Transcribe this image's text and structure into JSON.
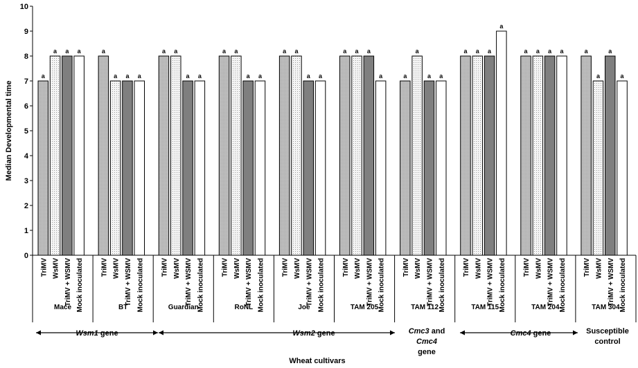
{
  "chart_data": {
    "type": "bar",
    "ylabel": "Median Developmental time",
    "xlabel": "Wheat cultivars",
    "ylim": [
      0,
      10
    ],
    "yticks": [
      0,
      1,
      2,
      3,
      4,
      5,
      6,
      7,
      8,
      9,
      10
    ],
    "treatments": [
      "TriMV",
      "WsMV",
      "TriMV + WSMV",
      "Mock inoculated"
    ],
    "treatment_colors": [
      "#bdbdbd",
      "#f0f0f0",
      "#7f7f7f",
      "#ffffff"
    ],
    "cultivars": [
      {
        "name": "Mace",
        "values": [
          7,
          8,
          8,
          8
        ],
        "labels": [
          "a",
          "a",
          "a",
          "a"
        ]
      },
      {
        "name": "BT",
        "values": [
          8,
          7,
          7,
          7
        ],
        "labels": [
          "a",
          "a",
          "a",
          "a"
        ]
      },
      {
        "name": "Guardian",
        "values": [
          8,
          8,
          7,
          7
        ],
        "labels": [
          "a",
          "a",
          "a",
          "a"
        ]
      },
      {
        "name": "RoNL",
        "values": [
          8,
          8,
          7,
          7
        ],
        "labels": [
          "a",
          "a",
          "a",
          "a"
        ]
      },
      {
        "name": "Joe",
        "values": [
          8,
          8,
          7,
          7
        ],
        "labels": [
          "a",
          "a",
          "a",
          "a"
        ]
      },
      {
        "name": "TAM 205",
        "values": [
          8,
          8,
          8,
          7
        ],
        "labels": [
          "a",
          "a",
          "a",
          "a"
        ]
      },
      {
        "name": "TAM 112",
        "values": [
          7,
          8,
          7,
          7
        ],
        "labels": [
          "a",
          "a",
          "a",
          "a"
        ]
      },
      {
        "name": "TAM 115",
        "values": [
          8,
          8,
          8,
          9
        ],
        "labels": [
          "a",
          "a",
          "a",
          "a"
        ]
      },
      {
        "name": "TAM 204",
        "values": [
          8,
          8,
          8,
          8
        ],
        "labels": [
          "a",
          "a",
          "a",
          "a"
        ]
      },
      {
        "name": "TAM 304",
        "values": [
          8,
          7,
          8,
          7
        ],
        "labels": [
          "a",
          "a",
          "a",
          "a"
        ]
      }
    ],
    "gene_groups": [
      {
        "name": "Wsm1",
        "suffix": " gene",
        "arrow": "both"
      },
      {
        "name": "Wsm2",
        "suffix": " gene",
        "arrow": "both"
      },
      {
        "line1_italic": "Cmc3",
        "line1_rest": " and",
        "line2_italic": "Cmc4",
        "line3": "gene",
        "arrow": "none"
      },
      {
        "name": "Cmc4",
        "suffix": " gene",
        "arrow": "both"
      },
      {
        "line1": "Susceptible",
        "line2": "control",
        "arrow": "none"
      }
    ]
  }
}
